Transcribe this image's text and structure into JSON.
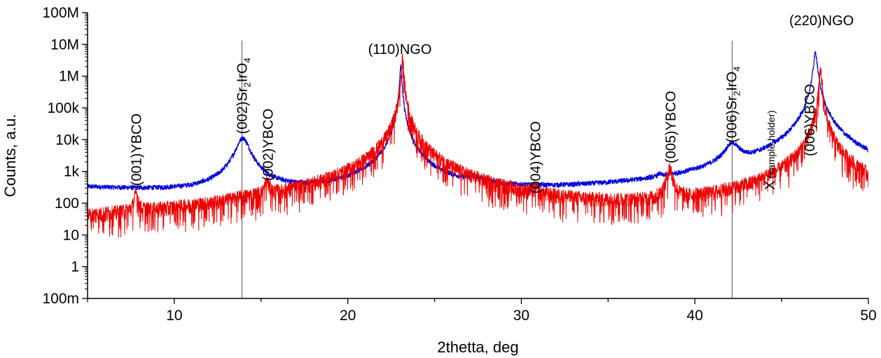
{
  "chart_data": {
    "type": "line",
    "xlabel": "2thetta, deg",
    "ylabel": "Counts, a.u.",
    "xlim": [
      5,
      50
    ],
    "ylim": [
      0.1,
      100000000
    ],
    "y_scale": "log",
    "x_ticks": [
      10,
      20,
      30,
      40,
      50
    ],
    "x_tick_labels": [
      "10",
      "20",
      "30",
      "40",
      "50"
    ],
    "y_ticks": [
      0.1,
      1,
      10,
      100,
      1000,
      10000,
      100000,
      1000000,
      10000000,
      100000000
    ],
    "y_tick_labels": [
      "100m",
      "1",
      "10",
      "100",
      "1k",
      "10k",
      "100k",
      "1M",
      "10M",
      "100M"
    ],
    "grid": false,
    "colors": {
      "series_blue": "#0000dd",
      "series_red": "#ee0000",
      "axis": "#000000",
      "marker_line": "#555555"
    },
    "series": [
      {
        "color": "blue",
        "baseline": [
          [
            5,
            280
          ],
          [
            10,
            190
          ],
          [
            13.2,
            150
          ],
          [
            16,
            150
          ],
          [
            20,
            120
          ],
          [
            22.6,
            140
          ],
          [
            24.5,
            130
          ],
          [
            27.5,
            130
          ],
          [
            30,
            115
          ],
          [
            33,
            100
          ],
          [
            36,
            90
          ],
          [
            37.7,
            85
          ],
          [
            40,
            100
          ],
          [
            41.5,
            150
          ],
          [
            43.3,
            160
          ],
          [
            44.2,
            180
          ],
          [
            46,
            280
          ],
          [
            48.5,
            100
          ],
          [
            50,
            70
          ]
        ],
        "peaks": [
          {
            "center": 13.95,
            "height": 11000,
            "width": 0.35
          },
          {
            "center": 23.05,
            "height": 2000000,
            "width": 0.05
          },
          {
            "center": 27.5,
            "height": 170,
            "width": 0.6
          },
          {
            "center": 37.95,
            "height": 160,
            "width": 0.1
          },
          {
            "center": 42.15,
            "height": 6000,
            "width": 0.4
          },
          {
            "center": 44.55,
            "height": 250,
            "width": 0.15
          },
          {
            "center": 46.95,
            "height": 5500000,
            "width": 0.09
          }
        ]
      },
      {
        "color": "red",
        "baseline": [
          [
            5,
            6
          ],
          [
            12.5,
            6
          ],
          [
            13.3,
            15
          ],
          [
            14.5,
            25
          ],
          [
            15.0,
            12
          ],
          [
            16.5,
            6
          ],
          [
            22.5,
            6
          ],
          [
            25,
            6
          ],
          [
            37,
            7
          ],
          [
            41,
            15
          ],
          [
            42,
            20
          ],
          [
            43,
            12
          ],
          [
            44,
            10
          ],
          [
            45.5,
            20
          ],
          [
            46.3,
            50
          ],
          [
            48.3,
            12
          ],
          [
            50,
            7
          ]
        ],
        "peaks": [
          {
            "center": 7.8,
            "height": 150,
            "width": 0.1
          },
          {
            "center": 15.35,
            "height": 300,
            "width": 0.12
          },
          {
            "center": 23.15,
            "height": 3000000,
            "width": 0.06
          },
          {
            "center": 30.8,
            "height": 80,
            "width": 0.12
          },
          {
            "center": 38.55,
            "height": 1100,
            "width": 0.15
          },
          {
            "center": 44.3,
            "height": 100,
            "width": 0.08
          },
          {
            "center": 46.8,
            "height": 2000,
            "width": 0.1
          },
          {
            "center": 47.25,
            "height": 1300000,
            "width": 0.07
          }
        ]
      }
    ],
    "vertical_lines": [
      13.9,
      42.15
    ],
    "annotations": [
      {
        "text": "(001)YBCO",
        "x": 7.8,
        "y": 350,
        "rotate": true
      },
      {
        "text": "(002)Sr",
        "sub1": "2",
        "mid": "IrO",
        "sub2": "4",
        "x": 13.9,
        "y": 15000,
        "rotate": true
      },
      {
        "text": "(002)YBCO",
        "x": 15.4,
        "y": 500,
        "rotate": true
      },
      {
        "text": "(110)NGO",
        "x": 23.0,
        "y": 5000000,
        "rotate": false
      },
      {
        "text": "(004)YBCO",
        "x": 30.8,
        "y": 200,
        "rotate": true
      },
      {
        "text": "(005)YBCO",
        "x": 38.6,
        "y": 1800,
        "rotate": true
      },
      {
        "text": "(006)Sr",
        "sub1": "2",
        "mid": "IrO",
        "sub2": "4",
        "x": 42.1,
        "y": 8000,
        "rotate": true
      },
      {
        "text": "X",
        "x": 44.3,
        "y": 260,
        "rotate": true,
        "small": false
      },
      {
        "text": "(sample holder)",
        "x": 44.3,
        "y": 600,
        "rotate": true,
        "small": true
      },
      {
        "text": "(006)YBCO",
        "x": 46.6,
        "y": 3000,
        "rotate": true
      },
      {
        "text": "(220)NGO",
        "x": 47.3,
        "y": 40000000,
        "rotate": false
      }
    ]
  }
}
